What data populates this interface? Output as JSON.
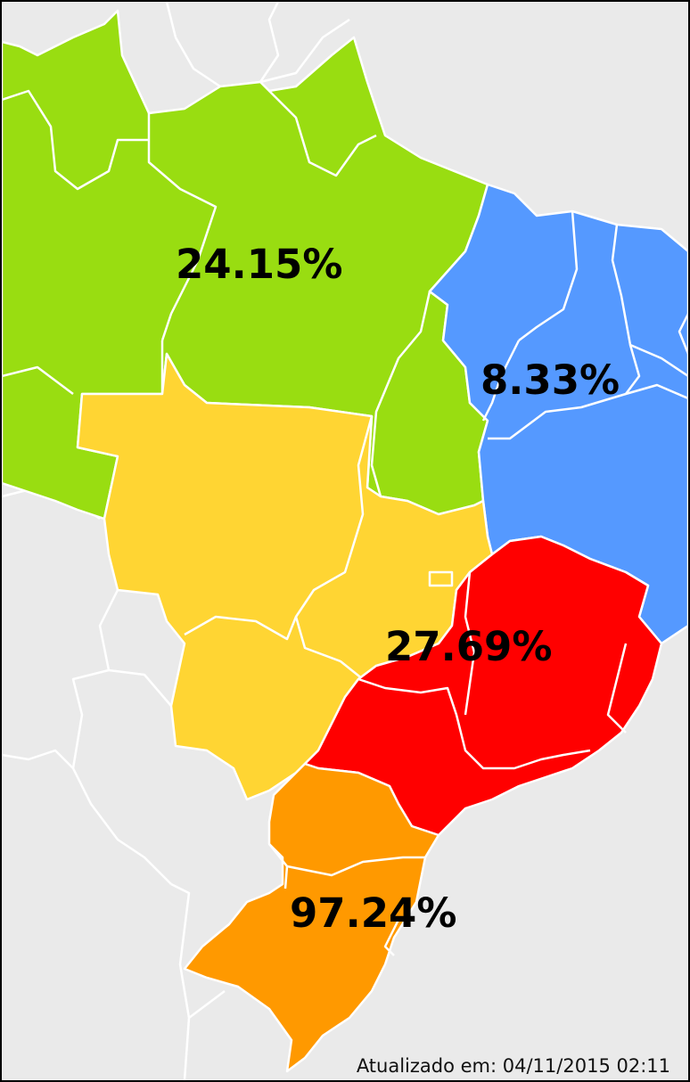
{
  "regions": [
    {
      "id": "norte",
      "label": "24.15%",
      "color": "#99dd11"
    },
    {
      "id": "nordeste",
      "label": "8.33%",
      "color": "#5599ff"
    },
    {
      "id": "centro-oeste",
      "label": "",
      "color": "#ffd533"
    },
    {
      "id": "sudeste",
      "label": "27.69%",
      "color": "#ff0000"
    },
    {
      "id": "sul",
      "label": "97.24%",
      "color": "#ff9900"
    }
  ],
  "footer": {
    "updated_text": "Atualizado em: 04/11/2015 02:11"
  },
  "colors": {
    "background": "#eaeaea",
    "borders": "#ffffff",
    "frame": "#000000"
  }
}
